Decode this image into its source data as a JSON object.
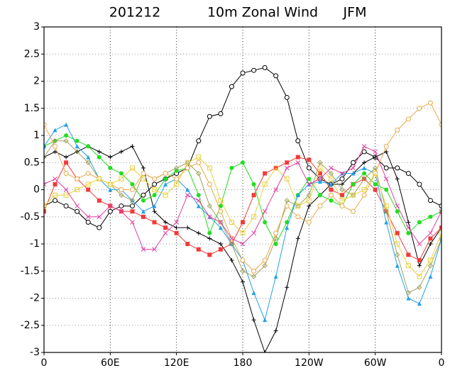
{
  "chart_data": {
    "type": "line",
    "title_parts": [
      "201212",
      "10m Zonal Wind",
      "JFM"
    ],
    "x": [
      0,
      10,
      20,
      30,
      40,
      50,
      60,
      70,
      80,
      90,
      100,
      110,
      120,
      130,
      140,
      150,
      160,
      170,
      180,
      190,
      200,
      210,
      220,
      230,
      240,
      250,
      260,
      270,
      280,
      290,
      300,
      310,
      320,
      330,
      340,
      350,
      360
    ],
    "xlim": [
      0,
      360
    ],
    "xticks": [
      0,
      {
        "value": 60,
        "label": "60E"
      },
      {
        "value": 120,
        "label": "120E"
      },
      180,
      {
        "value": 240,
        "label": "120W"
      },
      {
        "value": 300,
        "label": "60W"
      },
      {
        "value": 360,
        "label": "0"
      }
    ],
    "ylim": [
      -3,
      3
    ],
    "yticks": [
      3,
      2.5,
      2,
      1.5,
      1,
      0.5,
      0,
      -0.5,
      -1,
      -1.5,
      -2,
      -2.5,
      -3
    ],
    "grid": true,
    "series": [
      {
        "color": "#000000",
        "marker": "open-circle",
        "values": [
          -0.3,
          -0.2,
          -0.3,
          -0.4,
          -0.6,
          -0.7,
          -0.4,
          -0.3,
          -0.3,
          -0.1,
          0.1,
          0.2,
          0.3,
          0.4,
          0.9,
          1.35,
          1.4,
          1.9,
          2.15,
          2.2,
          2.25,
          2.1,
          1.7,
          0.9,
          0.4,
          0.2,
          0.1,
          0.2,
          0.5,
          0.7,
          0.6,
          0.4,
          0.4,
          0.3,
          0.1,
          -0.2,
          -0.3
        ]
      },
      {
        "color": "#000000",
        "marker": "plus",
        "values": [
          0.6,
          0.7,
          0.6,
          0.7,
          0.8,
          0.7,
          0.6,
          0.7,
          0.8,
          0.4,
          -0.4,
          -0.6,
          -0.7,
          -0.7,
          -0.8,
          -0.9,
          -1.0,
          -1.3,
          -1.7,
          -2.4,
          -3.0,
          -2.6,
          -1.8,
          -0.9,
          -0.3,
          -0.1,
          0.1,
          0.1,
          0.3,
          0.5,
          0.6,
          0.7,
          0.2,
          -0.6,
          -1.4,
          -1.0,
          -0.7
        ]
      },
      {
        "color": "#f23a3a",
        "marker": "square",
        "values": [
          -0.4,
          0.1,
          0.5,
          0.2,
          0.0,
          -0.2,
          -0.3,
          -0.4,
          -0.4,
          -0.5,
          -0.6,
          -0.7,
          -0.8,
          -1.0,
          -1.1,
          -1.2,
          -1.1,
          -1.0,
          -0.6,
          -0.1,
          0.3,
          0.4,
          0.5,
          0.6,
          0.55,
          0.3,
          0.0,
          -0.1,
          0.1,
          0.2,
          0.0,
          -0.4,
          -0.8,
          -1.2,
          -1.3,
          -0.9,
          -0.7
        ]
      },
      {
        "color": "#22dd22",
        "marker": "dot",
        "values": [
          0.8,
          0.9,
          1.0,
          0.9,
          0.8,
          0.6,
          0.4,
          0.3,
          0.1,
          -0.2,
          -0.1,
          0.2,
          0.35,
          0.4,
          -0.1,
          -0.8,
          -0.3,
          0.4,
          0.5,
          0.1,
          -0.6,
          -1.0,
          -0.6,
          -0.1,
          0.2,
          -0.1,
          -0.2,
          -0.3,
          0.1,
          0.3,
          0.1,
          0.0,
          -0.4,
          -0.8,
          -0.6,
          -0.5,
          -0.4
        ]
      },
      {
        "color": "#22a0e8",
        "marker": "triangle",
        "values": [
          0.8,
          1.1,
          1.2,
          0.8,
          0.6,
          0.2,
          0.0,
          0.0,
          -0.2,
          -0.4,
          -0.3,
          0.1,
          0.2,
          0.0,
          -0.3,
          -0.5,
          -0.7,
          -1.0,
          -1.3,
          -1.9,
          -2.4,
          -1.6,
          -0.7,
          -0.1,
          0.1,
          0.15,
          0.1,
          0.3,
          0.3,
          0.4,
          0.3,
          -0.6,
          -1.4,
          -2.0,
          -2.1,
          -1.6,
          -0.9
        ]
      },
      {
        "color": "#a0a060",
        "marker": "open-diamond",
        "values": [
          0.6,
          0.9,
          0.9,
          0.7,
          0.5,
          0.2,
          0.1,
          -0.1,
          -0.2,
          0.3,
          0.2,
          0.3,
          0.4,
          0.5,
          0.3,
          -0.3,
          -0.6,
          -1.0,
          -1.5,
          -1.6,
          -1.4,
          -0.9,
          -0.2,
          -0.3,
          -0.1,
          0.5,
          0.3,
          0.0,
          -0.1,
          0.2,
          0.4,
          -0.4,
          -1.2,
          -1.9,
          -1.8,
          -1.4,
          -0.9
        ]
      },
      {
        "color": "#e8a848",
        "marker": "open-circle",
        "values": [
          1.2,
          0.8,
          0.3,
          0.2,
          0.3,
          0.2,
          0.1,
          0.0,
          0.0,
          0.3,
          0.2,
          0.3,
          0.2,
          0.4,
          0.5,
          0.1,
          -0.4,
          -0.9,
          -1.3,
          -1.5,
          -1.3,
          -0.8,
          -0.3,
          -0.5,
          -0.6,
          -0.3,
          -0.1,
          -0.3,
          -0.4,
          -0.1,
          0.3,
          0.8,
          1.1,
          1.3,
          1.5,
          1.6,
          1.2
        ]
      },
      {
        "color": "#e8d040",
        "marker": "open-square",
        "values": [
          -0.3,
          -0.1,
          -0.1,
          0.0,
          0.1,
          0.2,
          0.1,
          0.2,
          0.4,
          0.2,
          0.0,
          -0.1,
          0.1,
          0.5,
          0.6,
          0.4,
          -0.2,
          -0.6,
          -0.8,
          -0.5,
          0.1,
          0.4,
          0.2,
          -0.3,
          -0.2,
          0.4,
          0.2,
          -0.2,
          -0.1,
          0.0,
          0.3,
          -0.3,
          -1.0,
          -1.4,
          -1.6,
          -1.3,
          -0.8
        ]
      },
      {
        "color": "#e040a0",
        "marker": "cross",
        "values": [
          0.1,
          0.2,
          0.0,
          -0.3,
          -0.5,
          -0.5,
          -0.3,
          -0.4,
          -0.6,
          -1.1,
          -1.1,
          -0.8,
          -0.6,
          -0.1,
          -0.2,
          -0.5,
          -0.6,
          -0.9,
          -1.0,
          -0.8,
          -0.4,
          0.0,
          0.4,
          0.5,
          0.1,
          0.2,
          0.4,
          0.3,
          0.4,
          0.8,
          0.7,
          0.2,
          -0.3,
          -0.7,
          -1.0,
          -0.8,
          -0.4
        ]
      }
    ]
  }
}
